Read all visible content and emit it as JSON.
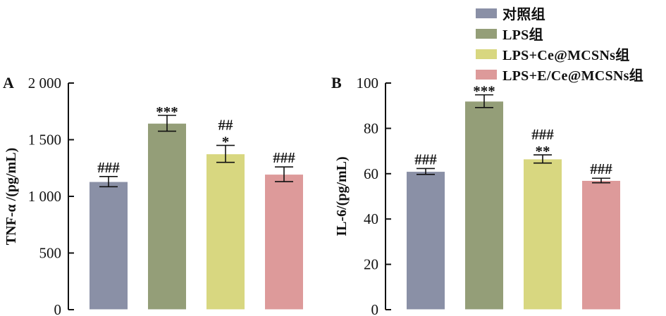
{
  "legend": [
    "对照组",
    "LPS组",
    "LPS+Ce@MCSNs组",
    "LPS+E/Ce@MCSNs组"
  ],
  "colors": [
    "#8a90a6",
    "#949e78",
    "#d8d780",
    "#dd9a9a"
  ],
  "chart_data": [
    {
      "type": "bar",
      "panel": "A",
      "ylabel": "TNF-α /(pg/mL)",
      "ylim": [
        0,
        2000
      ],
      "yticks": [
        0,
        500,
        1000,
        1500,
        2000
      ],
      "ytick_labels": [
        "0",
        "500",
        "1 000",
        "1 500",
        "2 000"
      ],
      "categories": [
        "对照组",
        "LPS组",
        "LPS+Ce@MCSNs组",
        "LPS+E/Ce@MCSNs组"
      ],
      "values": [
        1130,
        1645,
        1375,
        1195
      ],
      "errors": [
        45,
        70,
        75,
        65
      ],
      "significance": [
        [
          "###"
        ],
        [
          "***"
        ],
        [
          "##",
          "*"
        ],
        [
          "###"
        ]
      ]
    },
    {
      "type": "bar",
      "panel": "B",
      "ylabel": "IL-6/(pg/mL)",
      "ylim": [
        0,
        100
      ],
      "yticks": [
        0,
        20,
        40,
        60,
        80,
        100
      ],
      "ytick_labels": [
        "0",
        "20",
        "40",
        "60",
        "80",
        "100"
      ],
      "categories": [
        "对照组",
        "LPS组",
        "LPS+Ce@MCSNs组",
        "LPS+E/Ce@MCSNs组"
      ],
      "values": [
        61,
        92,
        66.5,
        57
      ],
      "errors": [
        1.3,
        2.8,
        1.8,
        1.0
      ],
      "significance": [
        [
          "###"
        ],
        [
          "***"
        ],
        [
          "###",
          "**"
        ],
        [
          "###"
        ]
      ]
    }
  ]
}
